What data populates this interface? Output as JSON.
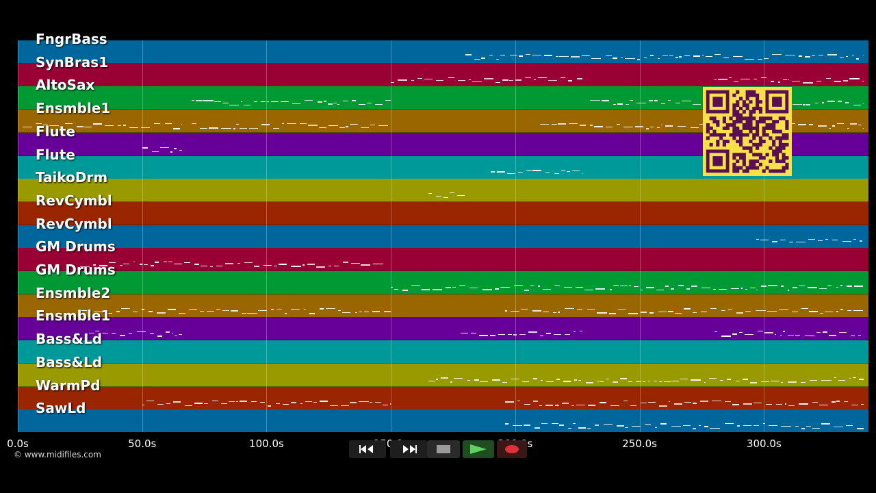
{
  "tracks": [
    {
      "name": "FngrBass",
      "color": "#00669c"
    },
    {
      "name": "SynBras1",
      "color": "#990033"
    },
    {
      "name": "AltoSax",
      "color": "#009933"
    },
    {
      "name": "Ensmble1",
      "color": "#996600"
    },
    {
      "name": "Flute",
      "color": "#660099"
    },
    {
      "name": "Flute",
      "color": "#009999"
    },
    {
      "name": "TaikoDrm",
      "color": "#999900"
    },
    {
      "name": "RevCymbl",
      "color": "#992600"
    },
    {
      "name": "RevCymbl",
      "color": "#00669c"
    },
    {
      "name": "GM Drums",
      "color": "#990033"
    },
    {
      "name": "GM Drums",
      "color": "#009933"
    },
    {
      "name": "Ensmble2",
      "color": "#996600"
    },
    {
      "name": "Ensmble1",
      "color": "#660099"
    },
    {
      "name": "Bass&Ld",
      "color": "#009999"
    },
    {
      "name": "Bass&Ld",
      "color": "#999900"
    },
    {
      "name": "WarmPd",
      "color": "#992600"
    },
    {
      "name": "SawLd",
      "color": "#00669c"
    }
  ],
  "axis": {
    "min_seconds": 0,
    "max_seconds": 342,
    "ticks": [
      {
        "value": 0,
        "label": "0.0s"
      },
      {
        "value": 50,
        "label": "50.0s"
      },
      {
        "value": 100,
        "label": "100.0s"
      },
      {
        "value": 150,
        "label": "150.0s"
      },
      {
        "value": 200,
        "label": "200.0s"
      },
      {
        "value": 250,
        "label": "250.0s"
      },
      {
        "value": 300,
        "label": "300.0s"
      }
    ]
  },
  "copyright": "© www.midifiles.com",
  "controls": [
    {
      "name": "rewind-button",
      "icon": "rewind-icon"
    },
    {
      "name": "fast-forward-button",
      "icon": "fast-forward-icon"
    },
    {
      "name": "stop-button",
      "icon": "stop-icon"
    },
    {
      "name": "play-button",
      "icon": "play-icon"
    },
    {
      "name": "record-button",
      "icon": "record-icon"
    }
  ],
  "qr_code": {
    "color": "#f7e04a",
    "dark": "#5a1050"
  },
  "notes": [
    {
      "track": 0,
      "segments": [
        [
          180,
          340
        ]
      ]
    },
    {
      "track": 1,
      "segments": [
        [
          150,
          227
        ],
        [
          280,
          340
        ]
      ]
    },
    {
      "track": 2,
      "segments": [
        [
          70,
          150
        ],
        [
          230,
          340
        ]
      ]
    },
    {
      "track": 3,
      "segments": [
        [
          2,
          66
        ],
        [
          70,
          150
        ],
        [
          210,
          340
        ]
      ]
    },
    {
      "track": 4,
      "segments": [
        [
          50,
          66
        ]
      ]
    },
    {
      "track": 5,
      "segments": [
        [
          190,
          227
        ]
      ]
    },
    {
      "track": 6,
      "segments": [
        [
          165,
          180
        ]
      ]
    },
    {
      "track": 8,
      "segments": [
        [
          297,
          340
        ]
      ]
    },
    {
      "track": 9,
      "segments": [
        [
          25,
          147
        ]
      ]
    },
    {
      "track": 10,
      "segments": [
        [
          150,
          340
        ]
      ]
    },
    {
      "track": 11,
      "segments": [
        [
          25,
          150
        ],
        [
          196,
          340
        ]
      ]
    },
    {
      "track": 12,
      "segments": [
        [
          27,
          66
        ],
        [
          178,
          227
        ],
        [
          280,
          340
        ]
      ]
    },
    {
      "track": 14,
      "segments": [
        [
          165,
          340
        ]
      ]
    },
    {
      "track": 15,
      "segments": [
        [
          50,
          150
        ],
        [
          196,
          340
        ]
      ]
    },
    {
      "track": 16,
      "segments": [
        [
          196,
          340
        ]
      ]
    }
  ]
}
